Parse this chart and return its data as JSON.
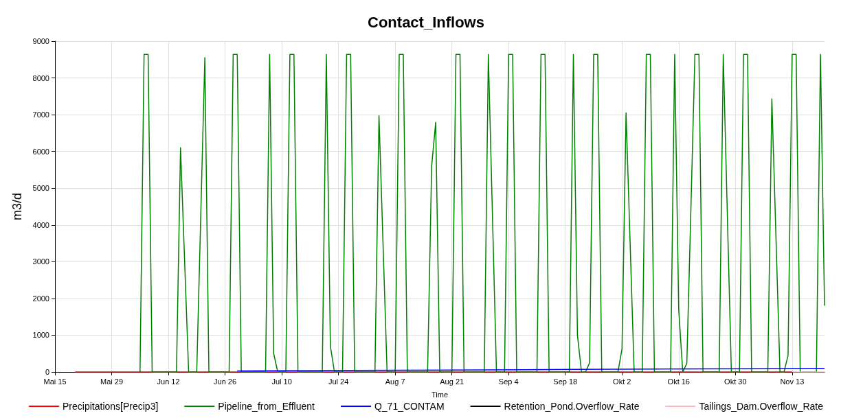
{
  "chart_data": {
    "type": "line",
    "title": "Contact_Inflows",
    "xlabel": "Time",
    "ylabel": "m3/d",
    "xlim": [
      "--05-15",
      "--11-21"
    ],
    "xticks": [
      {
        "value": "--05-15",
        "label": "Mai 15"
      },
      {
        "value": "--05-29",
        "label": "Mai 29"
      },
      {
        "value": "--06-12",
        "label": "Jun 12"
      },
      {
        "value": "--06-26",
        "label": "Jun 26"
      },
      {
        "value": "--07-10",
        "label": "Jul 10"
      },
      {
        "value": "--07-24",
        "label": "Jul 24"
      },
      {
        "value": "--08-07",
        "label": "Aug 7"
      },
      {
        "value": "--08-21",
        "label": "Aug 21"
      },
      {
        "value": "--09-04",
        "label": "Sep 4"
      },
      {
        "value": "--09-18",
        "label": "Sep 18"
      },
      {
        "value": "--10-02",
        "label": "Okt 2"
      },
      {
        "value": "--10-16",
        "label": "Okt 16"
      },
      {
        "value": "--10-30",
        "label": "Okt 30"
      },
      {
        "value": "--11-13",
        "label": "Nov 13"
      }
    ],
    "ylim": [
      0,
      9000
    ],
    "yticks": [
      0,
      1000,
      2000,
      3000,
      4000,
      5000,
      6000,
      7000,
      8000,
      9000
    ],
    "grid": true,
    "legend": "bottom",
    "series": [
      {
        "name": "Precipitations[Precip3]",
        "color": "#ff0000",
        "x": [
          "--05-20",
          "--11-13"
        ],
        "values": [
          0,
          0
        ]
      },
      {
        "name": "Pipeline_from_Effluent",
        "color": "#008000",
        "x": [
          "--06-05",
          "--06-06",
          "--06-07",
          "--06-08",
          "--06-14",
          "--06-15",
          "--06-17",
          "--06-19",
          "--06-21",
          "--06-22",
          "--06-27",
          "--06-28",
          "--06-29",
          "--06-30",
          "--07-06",
          "--07-07",
          "--07-08",
          "--07-09",
          "--07-11",
          "--07-12",
          "--07-13",
          "--07-14",
          "--07-20",
          "--07-21",
          "--07-22",
          "--07-23",
          "--07-25",
          "--07-26",
          "--07-27",
          "--07-28",
          "--08-02",
          "--08-03",
          "--08-05",
          "--08-07",
          "--08-08",
          "--08-09",
          "--08-10",
          "--08-15",
          "--08-16",
          "--08-17",
          "--08-18",
          "--08-21",
          "--08-22",
          "--08-23",
          "--08-24",
          "--08-29",
          "--08-30",
          "--09-01",
          "--09-03",
          "--09-04",
          "--09-05",
          "--09-06",
          "--09-11",
          "--09-12",
          "--09-13",
          "--09-14",
          "--09-19",
          "--09-20",
          "--09-21",
          "--09-22",
          "--09-23",
          "--09-24",
          "--09-25",
          "--09-26",
          "--09-27",
          "--10-01",
          "--10-02",
          "--10-03",
          "--10-05",
          "--10-07",
          "--10-08",
          "--10-09",
          "--10-10",
          "--10-14",
          "--10-15",
          "--10-16",
          "--10-17",
          "--10-18",
          "--10-19",
          "--10-20",
          "--10-21",
          "--10-22",
          "--10-26",
          "--10-27",
          "--10-29",
          "--10-31",
          "--11-01",
          "--11-02",
          "--11-03",
          "--11-07",
          "--11-08",
          "--11-10",
          "--11-11",
          "--11-12",
          "--11-13",
          "--11-14",
          "--11-15",
          "--11-19",
          "--11-20",
          "--11-21"
        ],
        "values": [
          0,
          8640,
          8640,
          0,
          0,
          6100,
          0,
          0,
          8550,
          0,
          0,
          8640,
          8640,
          0,
          0,
          8640,
          500,
          0,
          0,
          8640,
          8640,
          0,
          0,
          8640,
          700,
          0,
          0,
          8640,
          8640,
          0,
          0,
          6970,
          0,
          0,
          8640,
          8640,
          0,
          0,
          5600,
          6790,
          0,
          0,
          8640,
          8640,
          0,
          0,
          8640,
          0,
          0,
          8640,
          8640,
          0,
          0,
          8640,
          8640,
          0,
          0,
          8640,
          1000,
          0,
          0,
          250,
          8640,
          8640,
          0,
          0,
          630,
          7050,
          0,
          0,
          8640,
          8640,
          0,
          0,
          8640,
          1700,
          0,
          230,
          4400,
          8640,
          8640,
          0,
          0,
          8640,
          0,
          0,
          8640,
          8640,
          0,
          0,
          7430,
          0,
          0,
          450,
          8640,
          8640,
          0,
          0,
          8640,
          1800
        ]
      },
      {
        "name": "Q_71_CONTAM",
        "color": "#0000ff",
        "x": [
          "--06-29",
          "--08-20",
          "--09-20",
          "--10-10",
          "--11-08",
          "--11-21"
        ],
        "values": [
          30,
          50,
          70,
          80,
          90,
          100
        ]
      },
      {
        "name": "Retention_Pond.Overflow_Rate",
        "color": "#000000"
      },
      {
        "name": "Tailings_Dam.Overflow_Rate",
        "color": "#ffb6c1",
        "x": [
          "--11-13",
          "--11-21"
        ],
        "values": [
          0,
          0
        ]
      }
    ]
  }
}
